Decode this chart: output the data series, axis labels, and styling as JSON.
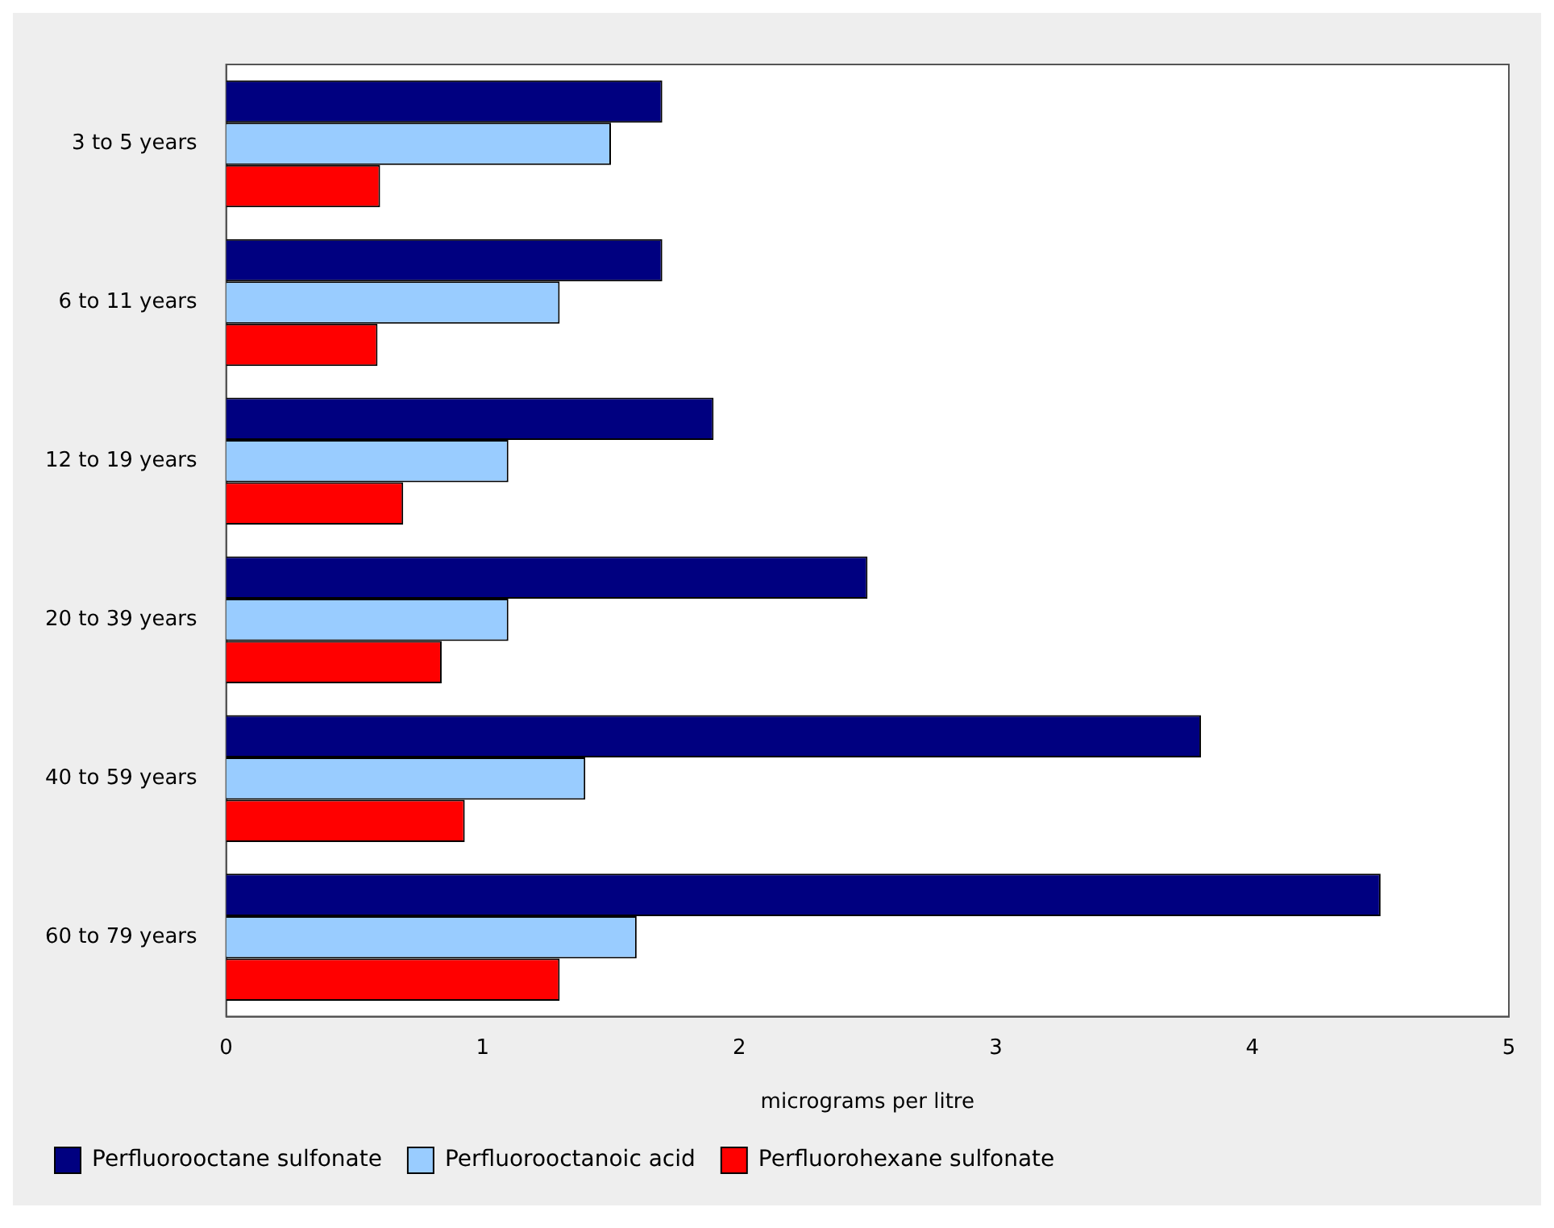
{
  "chart_data": {
    "type": "bar",
    "orientation": "horizontal",
    "xlabel": "micrograms per litre",
    "categories": [
      "3 to 5 years",
      "6 to 11 years",
      "12 to 19 years",
      "20 to 39 years",
      "40 to 59 years",
      "60 to 79 years"
    ],
    "series": [
      {
        "name": "Perfluorooctane sulfonate",
        "color": "#000080",
        "values": [
          1.7,
          1.7,
          1.9,
          2.5,
          3.8,
          4.5
        ]
      },
      {
        "name": "Perfluorooctanoic acid",
        "color": "#99ccff",
        "values": [
          1.5,
          1.3,
          1.1,
          1.1,
          1.4,
          1.6
        ]
      },
      {
        "name": "Perfluorohexane sulfonate",
        "color": "#ff0000",
        "values": [
          0.6,
          0.59,
          0.69,
          0.84,
          0.93,
          1.3
        ]
      }
    ],
    "xlim": [
      0,
      5
    ],
    "xticks": [
      0,
      1,
      2,
      3,
      4,
      5
    ],
    "grid": false,
    "legend": "bottom"
  }
}
